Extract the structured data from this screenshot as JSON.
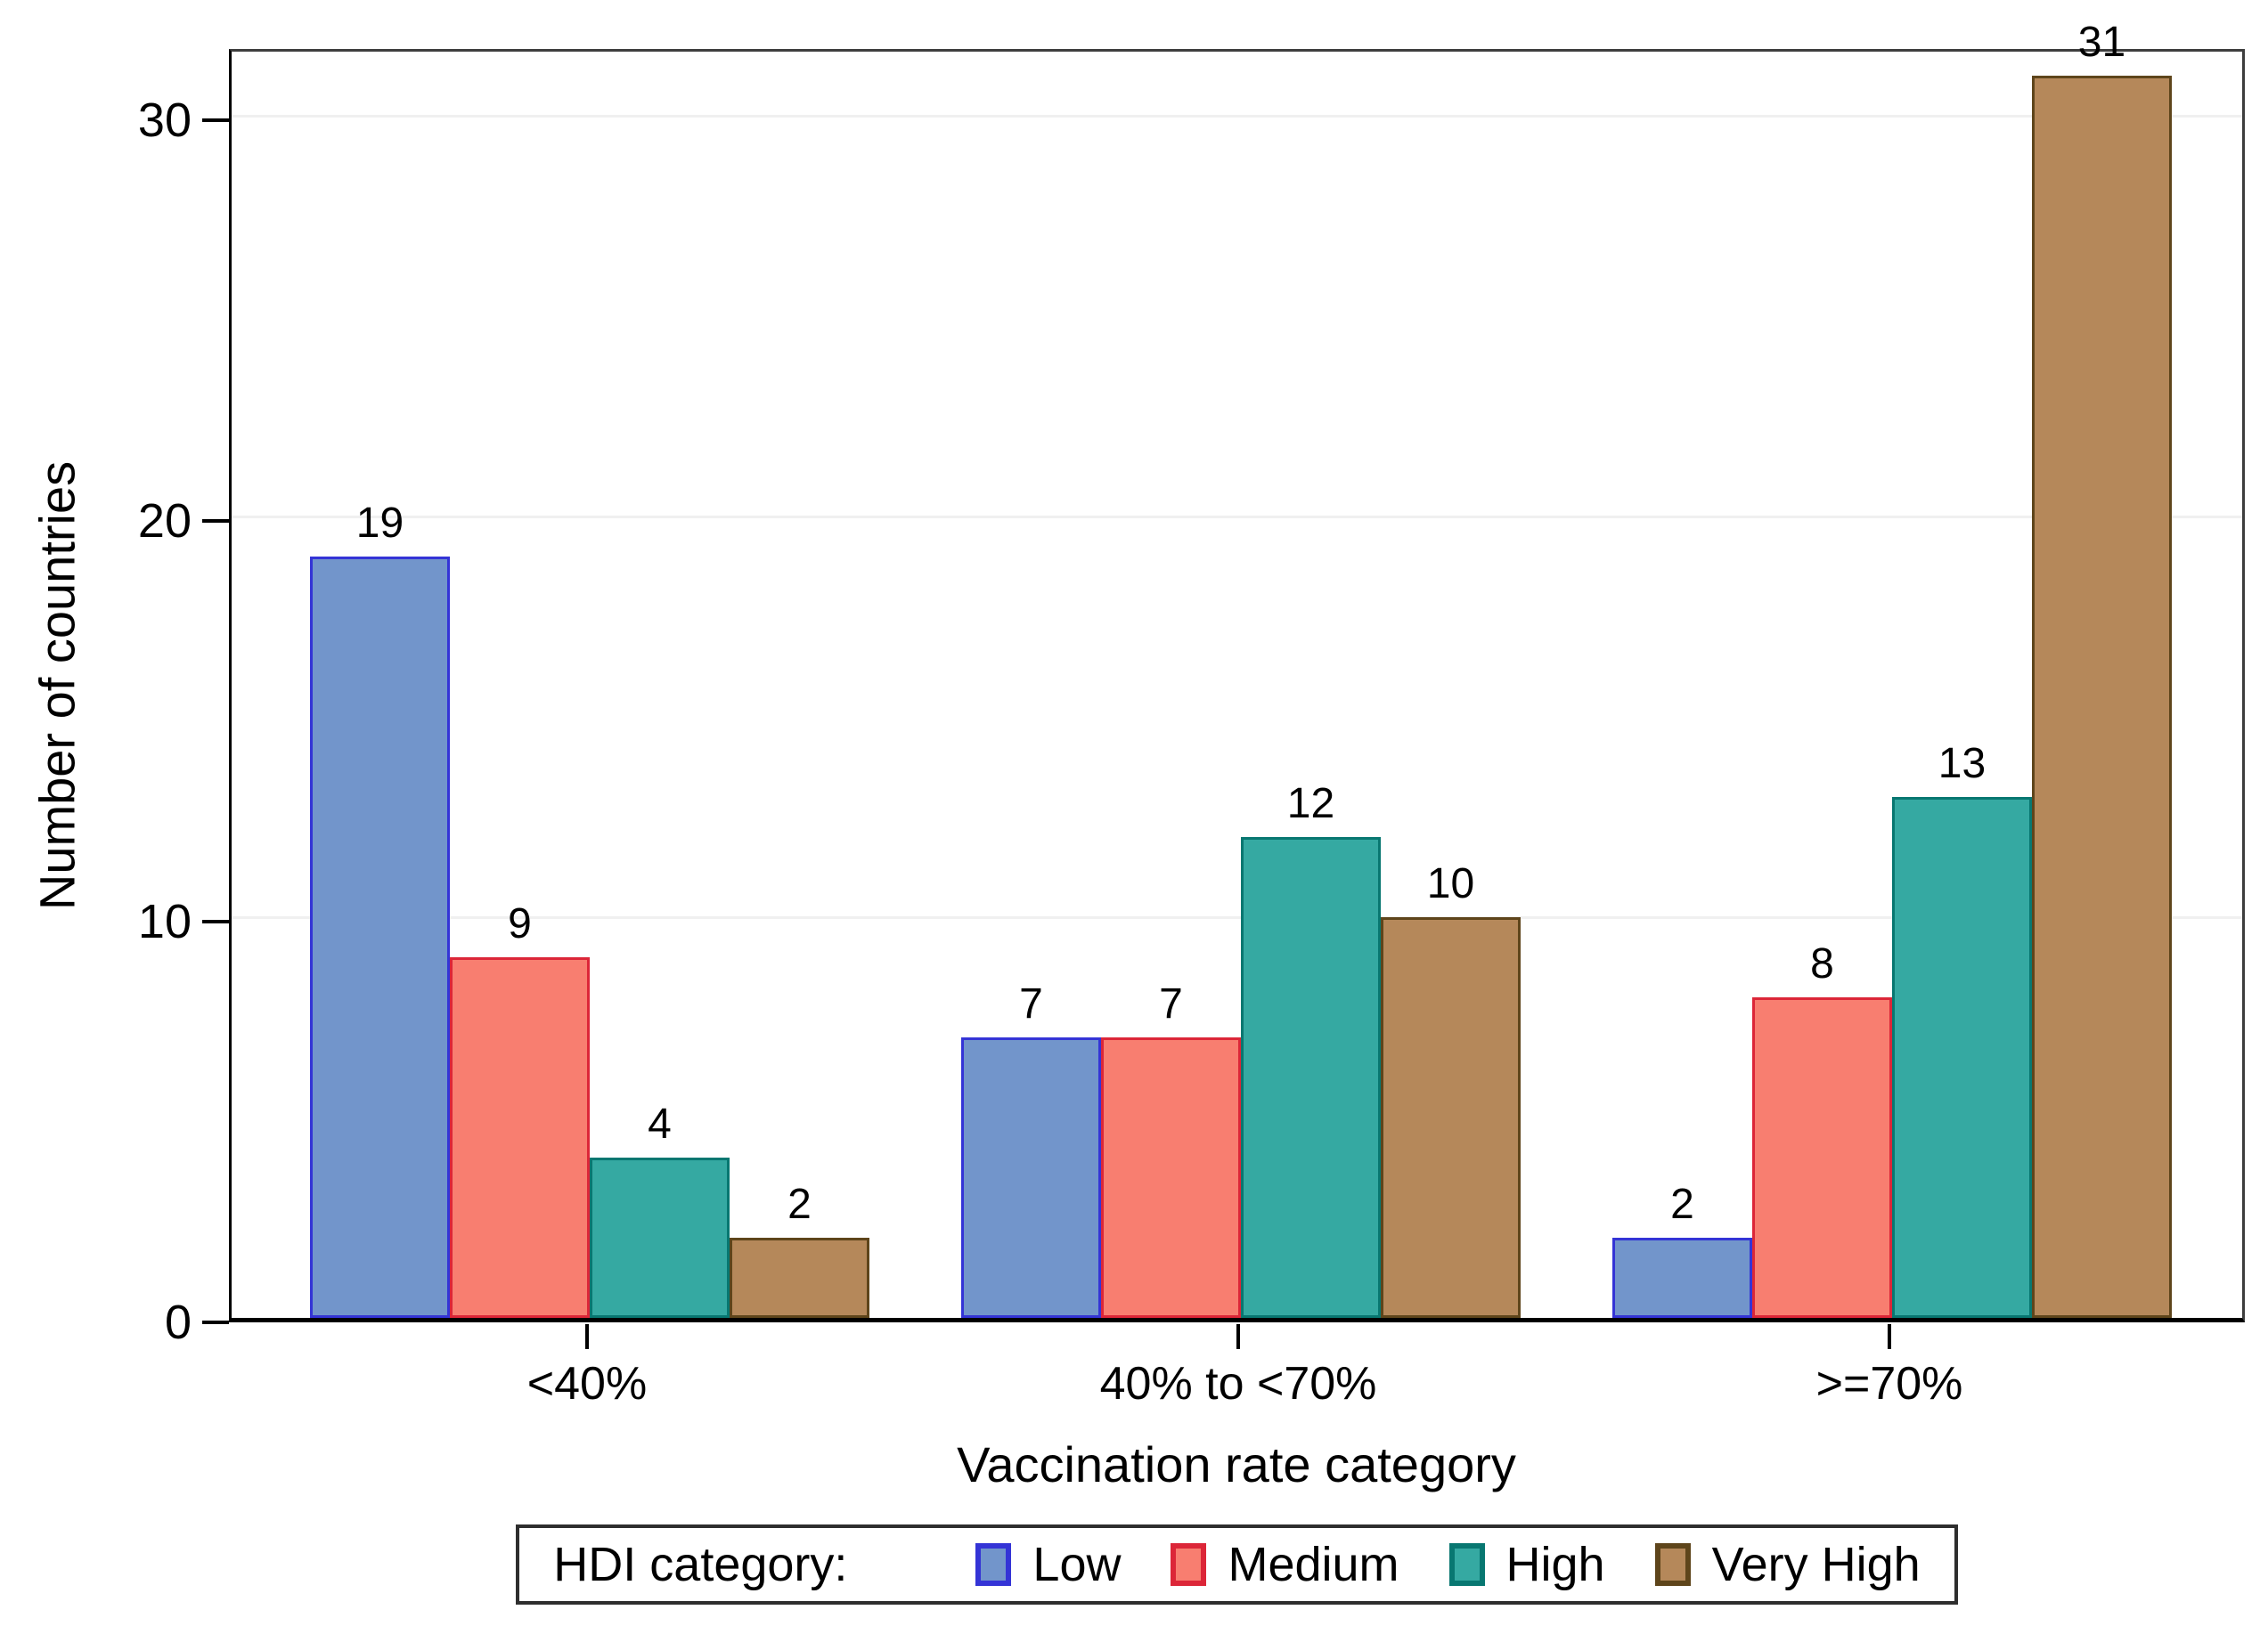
{
  "chart_data": {
    "type": "bar",
    "title": "",
    "xlabel": "Vaccination rate category",
    "ylabel": "Number of countries",
    "categories": [
      "<40%",
      "40% to <70%",
      ">=70%"
    ],
    "series": [
      {
        "name": "Low",
        "fill": "#7295CB",
        "border": "#3434D6",
        "values": [
          19,
          7,
          2
        ]
      },
      {
        "name": "Medium",
        "fill": "#F87E70",
        "border": "#DC2638",
        "values": [
          9,
          7,
          8
        ]
      },
      {
        "name": "High",
        "fill": "#35A9A2",
        "border": "#087771",
        "values": [
          4,
          12,
          13
        ]
      },
      {
        "name": "Very High",
        "fill": "#B5885A",
        "border": "#5E451B",
        "values": [
          2,
          10,
          31
        ]
      }
    ],
    "bar_value_labels": true,
    "yticks": [
      0,
      10,
      20,
      30
    ],
    "ylim": [
      0,
      31.8
    ],
    "grid": "horizontal",
    "legend": {
      "title": "HDI category:",
      "entries": [
        "Low",
        "Medium",
        "High",
        "Very High"
      ],
      "position": "bottom"
    }
  },
  "colors": {
    "grid": "#F0F0F0",
    "frame": "#3E3E3E",
    "axis": "#000000",
    "text": "#000000"
  }
}
